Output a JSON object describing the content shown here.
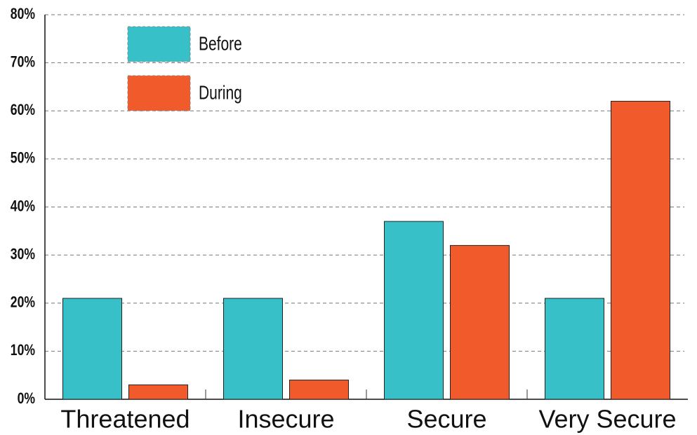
{
  "chart_data": {
    "type": "bar",
    "categories": [
      "Threatened",
      "Insecure",
      "Secure",
      "Very Secure"
    ],
    "series": [
      {
        "name": "Before",
        "color": "#38c0c8",
        "values": [
          21,
          21,
          37,
          21
        ]
      },
      {
        "name": "During",
        "color": "#f15a2b",
        "values": [
          3,
          4,
          32,
          62
        ]
      }
    ],
    "ylim": [
      0,
      80
    ],
    "yticks": [
      {
        "value": 0,
        "label": "0%"
      },
      {
        "value": 10,
        "label": "10%"
      },
      {
        "value": 20,
        "label": "20%"
      },
      {
        "value": 30,
        "label": "30%"
      },
      {
        "value": 40,
        "label": "40%"
      },
      {
        "value": 50,
        "label": "50%"
      },
      {
        "value": 60,
        "label": "60%"
      },
      {
        "value": 70,
        "label": "70%"
      },
      {
        "value": 80,
        "label": "80%"
      }
    ],
    "grid": true,
    "legend": "upper left"
  }
}
